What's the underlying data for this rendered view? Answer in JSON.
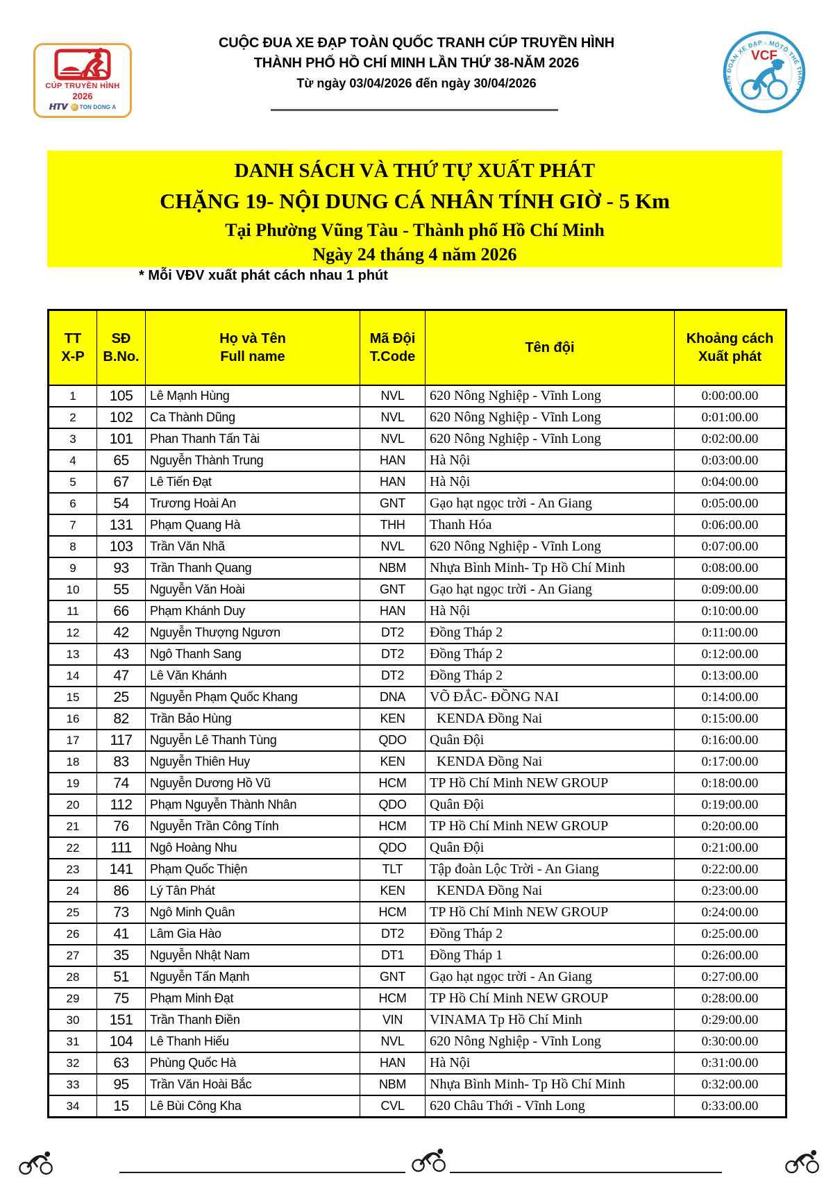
{
  "top_header": {
    "line1": "CUỘC ĐUA XE ĐẠP TOÀN QUỐC TRANH CÚP TRUYỀN HÌNH",
    "line2": "THÀNH PHỐ HỒ CHÍ MINH LẦN THỨ 38-NĂM 2026",
    "line3": "Từ ngày 03/04/2026 đến ngày 30/04/2026",
    "left_logo": {
      "title": "CÚP TRUYỀN HÌNH",
      "year": "2026",
      "htv": "HTV",
      "sponsor": "TON DONG A"
    },
    "right_logo": {
      "acronym": "VCF",
      "ring_text": "LIÊN ĐOÀN XE ĐẠP - MÔTÔ THỂ THAO VIỆT NAM"
    }
  },
  "title_block": {
    "line1": "DANH SÁCH VÀ THỨ TỰ XUẤT PHÁT",
    "line2": "CHẶNG 19- NỘI DUNG CÁ NHÂN TÍNH GIỜ - 5 Km",
    "line3": "Tại Phường Vũng Tàu - Thành phố Hồ Chí Minh",
    "line4": "Ngày 24 tháng 4 năm 2026"
  },
  "note": "* Mỗi VĐV xuất phát cách nhau 1 phút",
  "colors": {
    "accent_yellow": "#ffff00",
    "logo_red": "#d22027",
    "logo_blue": "#2e96c8",
    "logo_gold_border": "#e9a63f",
    "ink": "#000000"
  },
  "table": {
    "columns": [
      {
        "line1": "TT",
        "line2": "X-P"
      },
      {
        "line1": "SĐ",
        "line2": "B.No."
      },
      {
        "line1": "Họ và Tên",
        "line2": "Full name"
      },
      {
        "line1": "Mã Đội",
        "line2": "T.Code"
      },
      {
        "line1": "Tên đội",
        "line2": ""
      },
      {
        "line1": "Khoảng cách",
        "line2": "Xuất phát"
      }
    ],
    "rows": [
      {
        "tt": "1",
        "no": "105",
        "name": "Lê Mạnh Hùng",
        "code": "NVL",
        "team": "620 Nông Nghiệp - Vĩnh Long",
        "gap": "0:00:00.00"
      },
      {
        "tt": "2",
        "no": "102",
        "name": "Ca Thành Dũng",
        "code": "NVL",
        "team": "620 Nông Nghiệp - Vĩnh Long",
        "gap": "0:01:00.00"
      },
      {
        "tt": "3",
        "no": "101",
        "name": "Phan Thanh Tấn Tài",
        "code": "NVL",
        "team": "620 Nông Nghiệp - Vĩnh Long",
        "gap": "0:02:00.00"
      },
      {
        "tt": "4",
        "no": "65",
        "name": "Nguyễn Thành Trung",
        "code": "HAN",
        "team": "Hà Nội",
        "gap": "0:03:00.00"
      },
      {
        "tt": "5",
        "no": "67",
        "name": "Lê Tiến Đạt",
        "code": "HAN",
        "team": "Hà Nội",
        "gap": "0:04:00.00"
      },
      {
        "tt": "6",
        "no": "54",
        "name": "Trương Hoài An",
        "code": "GNT",
        "team": "Gạo hạt ngọc trời - An Giang",
        "gap": "0:05:00.00"
      },
      {
        "tt": "7",
        "no": "131",
        "name": "Phạm Quang Hà",
        "code": "THH",
        "team": "Thanh Hóa",
        "gap": "0:06:00.00"
      },
      {
        "tt": "8",
        "no": "103",
        "name": "Trần Văn Nhã",
        "code": "NVL",
        "team": "620 Nông Nghiệp - Vĩnh Long",
        "gap": "0:07:00.00"
      },
      {
        "tt": "9",
        "no": "93",
        "name": "Trần Thanh Quang",
        "code": "NBM",
        "team": "Nhựa Bình Minh- Tp Hồ Chí Minh",
        "gap": "0:08:00.00"
      },
      {
        "tt": "10",
        "no": "55",
        "name": "Nguyễn Văn Hoài",
        "code": "GNT",
        "team": "Gạo hạt ngọc trời - An Giang",
        "gap": "0:09:00.00"
      },
      {
        "tt": "11",
        "no": "66",
        "name": "Phạm Khánh Duy",
        "code": "HAN",
        "team": "Hà Nội",
        "gap": "0:10:00.00"
      },
      {
        "tt": "12",
        "no": "42",
        "name": "Nguyễn Thượng Ngươn",
        "code": "DT2",
        "team": "Đồng Tháp 2",
        "gap": "0:11:00.00"
      },
      {
        "tt": "13",
        "no": "43",
        "name": "Ngô Thanh Sang",
        "code": "DT2",
        "team": "Đồng Tháp 2",
        "gap": "0:12:00.00"
      },
      {
        "tt": "14",
        "no": "47",
        "name": "Lê Văn Khánh",
        "code": "DT2",
        "team": "Đồng Tháp 2",
        "gap": "0:13:00.00"
      },
      {
        "tt": "15",
        "no": "25",
        "name": "Nguyễn Phạm Quốc Khang",
        "code": "DNA",
        "team": "VÕ ĐẮC- ĐỒNG NAI",
        "gap": "0:14:00.00"
      },
      {
        "tt": "16",
        "no": "82",
        "name": "Trần Bảo Hùng",
        "code": "KEN",
        "team": "  KENDA Đồng Nai",
        "gap": "0:15:00.00"
      },
      {
        "tt": "17",
        "no": "117",
        "name": "Nguyễn Lê Thanh Tùng",
        "code": "QDO",
        "team": "Quân Đội",
        "gap": "0:16:00.00"
      },
      {
        "tt": "18",
        "no": "83",
        "name": "Nguyễn Thiên Huy",
        "code": "KEN",
        "team": "  KENDA Đồng Nai",
        "gap": "0:17:00.00"
      },
      {
        "tt": "19",
        "no": "74",
        "name": "Nguyễn Dương Hồ Vũ",
        "code": "HCM",
        "team": "TP Hồ Chí Minh NEW GROUP",
        "gap": "0:18:00.00"
      },
      {
        "tt": "20",
        "no": "112",
        "name": "Phạm Nguyễn Thành Nhân",
        "code": "QDO",
        "team": "Quân Đội",
        "gap": "0:19:00.00"
      },
      {
        "tt": "21",
        "no": "76",
        "name": "Nguyễn Trần Công Tính",
        "code": "HCM",
        "team": "TP Hồ Chí Minh NEW GROUP",
        "gap": "0:20:00.00"
      },
      {
        "tt": "22",
        "no": "111",
        "name": "Ngô Hoàng Nhu",
        "code": "QDO",
        "team": "Quân Đội",
        "gap": "0:21:00.00"
      },
      {
        "tt": "23",
        "no": "141",
        "name": "Phạm Quốc Thiện",
        "code": "TLT",
        "team": "Tập đoàn Lộc Trời - An Giang",
        "gap": "0:22:00.00"
      },
      {
        "tt": "24",
        "no": "86",
        "name": "Lý Tân Phát",
        "code": "KEN",
        "team": "  KENDA Đồng Nai",
        "gap": "0:23:00.00"
      },
      {
        "tt": "25",
        "no": "73",
        "name": "Ngô Minh Quân",
        "code": "HCM",
        "team": "TP Hồ Chí Minh NEW GROUP",
        "gap": "0:24:00.00"
      },
      {
        "tt": "26",
        "no": "41",
        "name": "Lâm Gia Hào",
        "code": "DT2",
        "team": "Đồng Tháp 2",
        "gap": "0:25:00.00"
      },
      {
        "tt": "27",
        "no": "35",
        "name": "Nguyễn Nhật Nam",
        "code": "DT1",
        "team": "Đồng Tháp 1",
        "gap": "0:26:00.00"
      },
      {
        "tt": "28",
        "no": "51",
        "name": "Nguyễn Tấn Mạnh",
        "code": "GNT",
        "team": "Gạo hạt ngọc trời - An Giang",
        "gap": "0:27:00.00"
      },
      {
        "tt": "29",
        "no": "75",
        "name": "Phạm Minh Đạt",
        "code": "HCM",
        "team": "TP Hồ Chí Minh NEW GROUP",
        "gap": "0:28:00.00"
      },
      {
        "tt": "30",
        "no": "151",
        "name": "Trần Thanh Điền",
        "code": "VIN",
        "team": "VINAMA Tp Hồ Chí Minh",
        "gap": "0:29:00.00"
      },
      {
        "tt": "31",
        "no": "104",
        "name": "Lê Thanh Hiếu",
        "code": "NVL",
        "team": "620 Nông Nghiệp - Vĩnh Long",
        "gap": "0:30:00.00"
      },
      {
        "tt": "32",
        "no": "63",
        "name": "Phùng Quốc Hà",
        "code": "HAN",
        "team": "Hà Nội",
        "gap": "0:31:00.00"
      },
      {
        "tt": "33",
        "no": "95",
        "name": "Trần Văn Hoài Bắc",
        "code": "NBM",
        "team": "Nhựa Bình Minh- Tp Hồ Chí Minh",
        "gap": "0:32:00.00"
      },
      {
        "tt": "34",
        "no": "15",
        "name": "Lê Bùi Công Kha",
        "code": "CVL",
        "team": "620 Châu Thới - Vĩnh Long",
        "gap": "0:33:00.00"
      }
    ]
  }
}
